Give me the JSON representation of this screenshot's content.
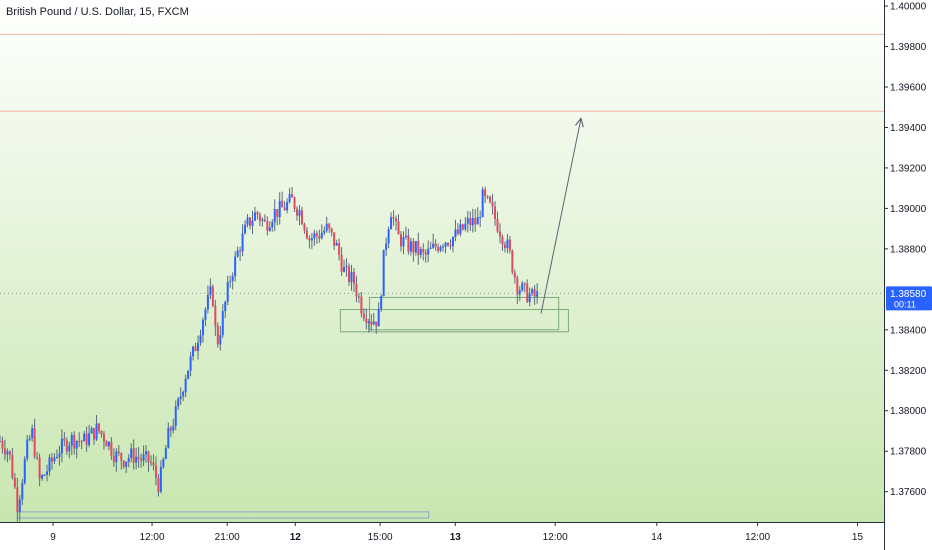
{
  "title": "British Pound / U.S. Dollar, 15, FXCM",
  "colors": {
    "background_top": "#ffffff",
    "background_bottom": "#c8e6b0",
    "up": "#2962ff",
    "down": "#e04a5f",
    "wick": "#5b6b7c",
    "resistance": "#f0b8a0",
    "box_stroke": "#7fa87f",
    "box_bottom_stroke": "#8aa6c8",
    "price_label_bg": "#2962ff",
    "arrow": "#5d6670"
  },
  "chart_data": {
    "type": "candlestick",
    "symbol": "British Pound / U.S. Dollar",
    "interval": "15",
    "source": "FXCM",
    "ylim": [
      1.3745,
      1.4003
    ],
    "y_ticks": [
      "1.40000",
      "1.39800",
      "1.39600",
      "1.39400",
      "1.39200",
      "1.39000",
      "1.38800",
      "1.38580",
      "1.38400",
      "1.38200",
      "1.38000",
      "1.37800",
      "1.37600"
    ],
    "x_ticks": [
      {
        "label": "9",
        "bold": false
      },
      {
        "label": "12:00",
        "bold": false
      },
      {
        "label": "21:00",
        "bold": false
      },
      {
        "label": "12",
        "bold": true
      },
      {
        "label": "15:00",
        "bold": false
      },
      {
        "label": "13",
        "bold": true
      },
      {
        "label": "12:00",
        "bold": false
      },
      {
        "label": "14",
        "bold": false
      },
      {
        "label": "12:00",
        "bold": false
      },
      {
        "label": "15",
        "bold": false
      }
    ],
    "current_price": "1.38580",
    "countdown": "00:11",
    "horizontal_lines": [
      1.3986,
      1.3948
    ],
    "zones": [
      {
        "from": 1.385,
        "to": 1.3839,
        "start": 0.385,
        "end": 0.643
      },
      {
        "from": 1.3856,
        "to": 1.384,
        "start": 0.418,
        "end": 0.632
      },
      {
        "from": 1.375,
        "to": 1.3747,
        "start": 0.02,
        "end": 0.485
      }
    ],
    "arrow": {
      "from": [
        0.612,
        1.3848
      ],
      "to": [
        0.657,
        1.3944
      ]
    },
    "path": [
      [
        0.0,
        1.3785
      ],
      [
        0.01,
        1.378
      ],
      [
        0.02,
        1.3753
      ],
      [
        0.03,
        1.378
      ],
      [
        0.036,
        1.379
      ],
      [
        0.045,
        1.3765
      ],
      [
        0.055,
        1.3772
      ],
      [
        0.065,
        1.378
      ],
      [
        0.08,
        1.3786
      ],
      [
        0.095,
        1.3785
      ],
      [
        0.11,
        1.3791
      ],
      [
        0.12,
        1.3786
      ],
      [
        0.13,
        1.3778
      ],
      [
        0.14,
        1.3776
      ],
      [
        0.15,
        1.3778
      ],
      [
        0.16,
        1.3776
      ],
      [
        0.17,
        1.3775
      ],
      [
        0.18,
        1.3763
      ],
      [
        0.19,
        1.3787
      ],
      [
        0.2,
        1.38
      ],
      [
        0.21,
        1.3818
      ],
      [
        0.22,
        1.383
      ],
      [
        0.23,
        1.3847
      ],
      [
        0.24,
        1.386
      ],
      [
        0.245,
        1.3832
      ],
      [
        0.25,
        1.3842
      ],
      [
        0.26,
        1.3865
      ],
      [
        0.27,
        1.388
      ],
      [
        0.28,
        1.3892
      ],
      [
        0.29,
        1.3898
      ],
      [
        0.3,
        1.3892
      ],
      [
        0.31,
        1.3898
      ],
      [
        0.32,
        1.39
      ],
      [
        0.33,
        1.3904
      ],
      [
        0.34,
        1.3898
      ],
      [
        0.35,
        1.3885
      ],
      [
        0.36,
        1.3887
      ],
      [
        0.37,
        1.389
      ],
      [
        0.38,
        1.3882
      ],
      [
        0.39,
        1.3868
      ],
      [
        0.4,
        1.3864
      ],
      [
        0.41,
        1.385
      ],
      [
        0.42,
        1.3845
      ],
      [
        0.428,
        1.3845
      ],
      [
        0.435,
        1.388
      ],
      [
        0.442,
        1.39
      ],
      [
        0.45,
        1.3886
      ],
      [
        0.46,
        1.3882
      ],
      [
        0.47,
        1.388
      ],
      [
        0.48,
        1.3876
      ],
      [
        0.49,
        1.388
      ],
      [
        0.5,
        1.3884
      ],
      [
        0.51,
        1.3885
      ],
      [
        0.52,
        1.3888
      ],
      [
        0.53,
        1.3893
      ],
      [
        0.54,
        1.3893
      ],
      [
        0.546,
        1.3905
      ],
      [
        0.555,
        1.39
      ],
      [
        0.565,
        1.389
      ],
      [
        0.575,
        1.388
      ],
      [
        0.585,
        1.3862
      ],
      [
        0.595,
        1.3858
      ],
      [
        0.603,
        1.3856
      ],
      [
        0.61,
        1.3857
      ]
    ]
  }
}
